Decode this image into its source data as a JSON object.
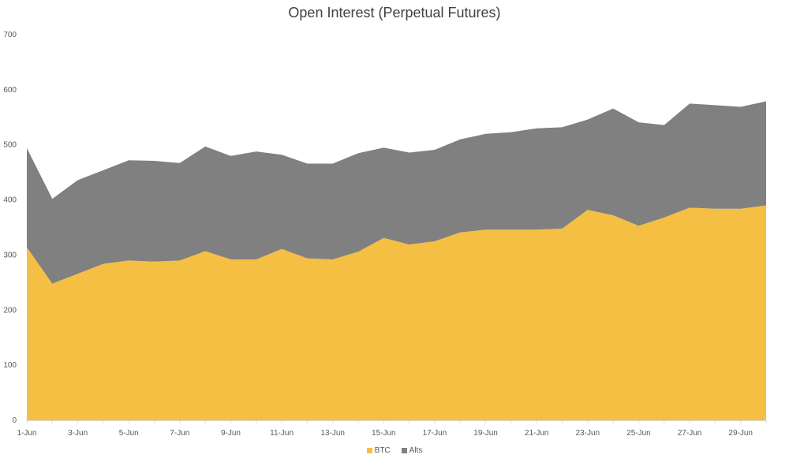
{
  "chart_data": {
    "type": "area",
    "stacked": true,
    "title": "Open Interest (Perpetual Futures)",
    "xlabel": "",
    "ylabel": "",
    "ylim": [
      0,
      700
    ],
    "yticks": [
      0,
      100,
      200,
      300,
      400,
      500,
      600,
      700
    ],
    "grid": false,
    "legend_position": "bottom",
    "x": [
      "1-Jun",
      "2-Jun",
      "3-Jun",
      "4-Jun",
      "5-Jun",
      "6-Jun",
      "7-Jun",
      "8-Jun",
      "9-Jun",
      "10-Jun",
      "11-Jun",
      "12-Jun",
      "13-Jun",
      "14-Jun",
      "15-Jun",
      "16-Jun",
      "17-Jun",
      "18-Jun",
      "19-Jun",
      "20-Jun",
      "21-Jun",
      "22-Jun",
      "23-Jun",
      "24-Jun",
      "25-Jun",
      "26-Jun",
      "27-Jun",
      "28-Jun",
      "29-Jun",
      "30-Jun"
    ],
    "xtick_labels": [
      "1-Jun",
      "3-Jun",
      "5-Jun",
      "7-Jun",
      "9-Jun",
      "11-Jun",
      "13-Jun",
      "15-Jun",
      "17-Jun",
      "19-Jun",
      "21-Jun",
      "23-Jun",
      "25-Jun",
      "27-Jun",
      "29-Jun"
    ],
    "series": [
      {
        "name": "BTC",
        "color": "#F4BF42",
        "values": [
          314,
          248,
          266,
          284,
          290,
          288,
          290,
          307,
          292,
          292,
          311,
          294,
          292,
          306,
          331,
          319,
          325,
          341,
          346,
          346,
          346,
          348,
          382,
          372,
          353,
          368,
          386,
          384,
          384,
          390
        ]
      },
      {
        "name": "Alts",
        "color": "#808080",
        "values": [
          180,
          154,
          170,
          170,
          182,
          183,
          177,
          190,
          188,
          196,
          171,
          172,
          174,
          179,
          164,
          167,
          166,
          169,
          174,
          177,
          184,
          184,
          164,
          194,
          188,
          168,
          189,
          188,
          185,
          189
        ]
      }
    ]
  }
}
